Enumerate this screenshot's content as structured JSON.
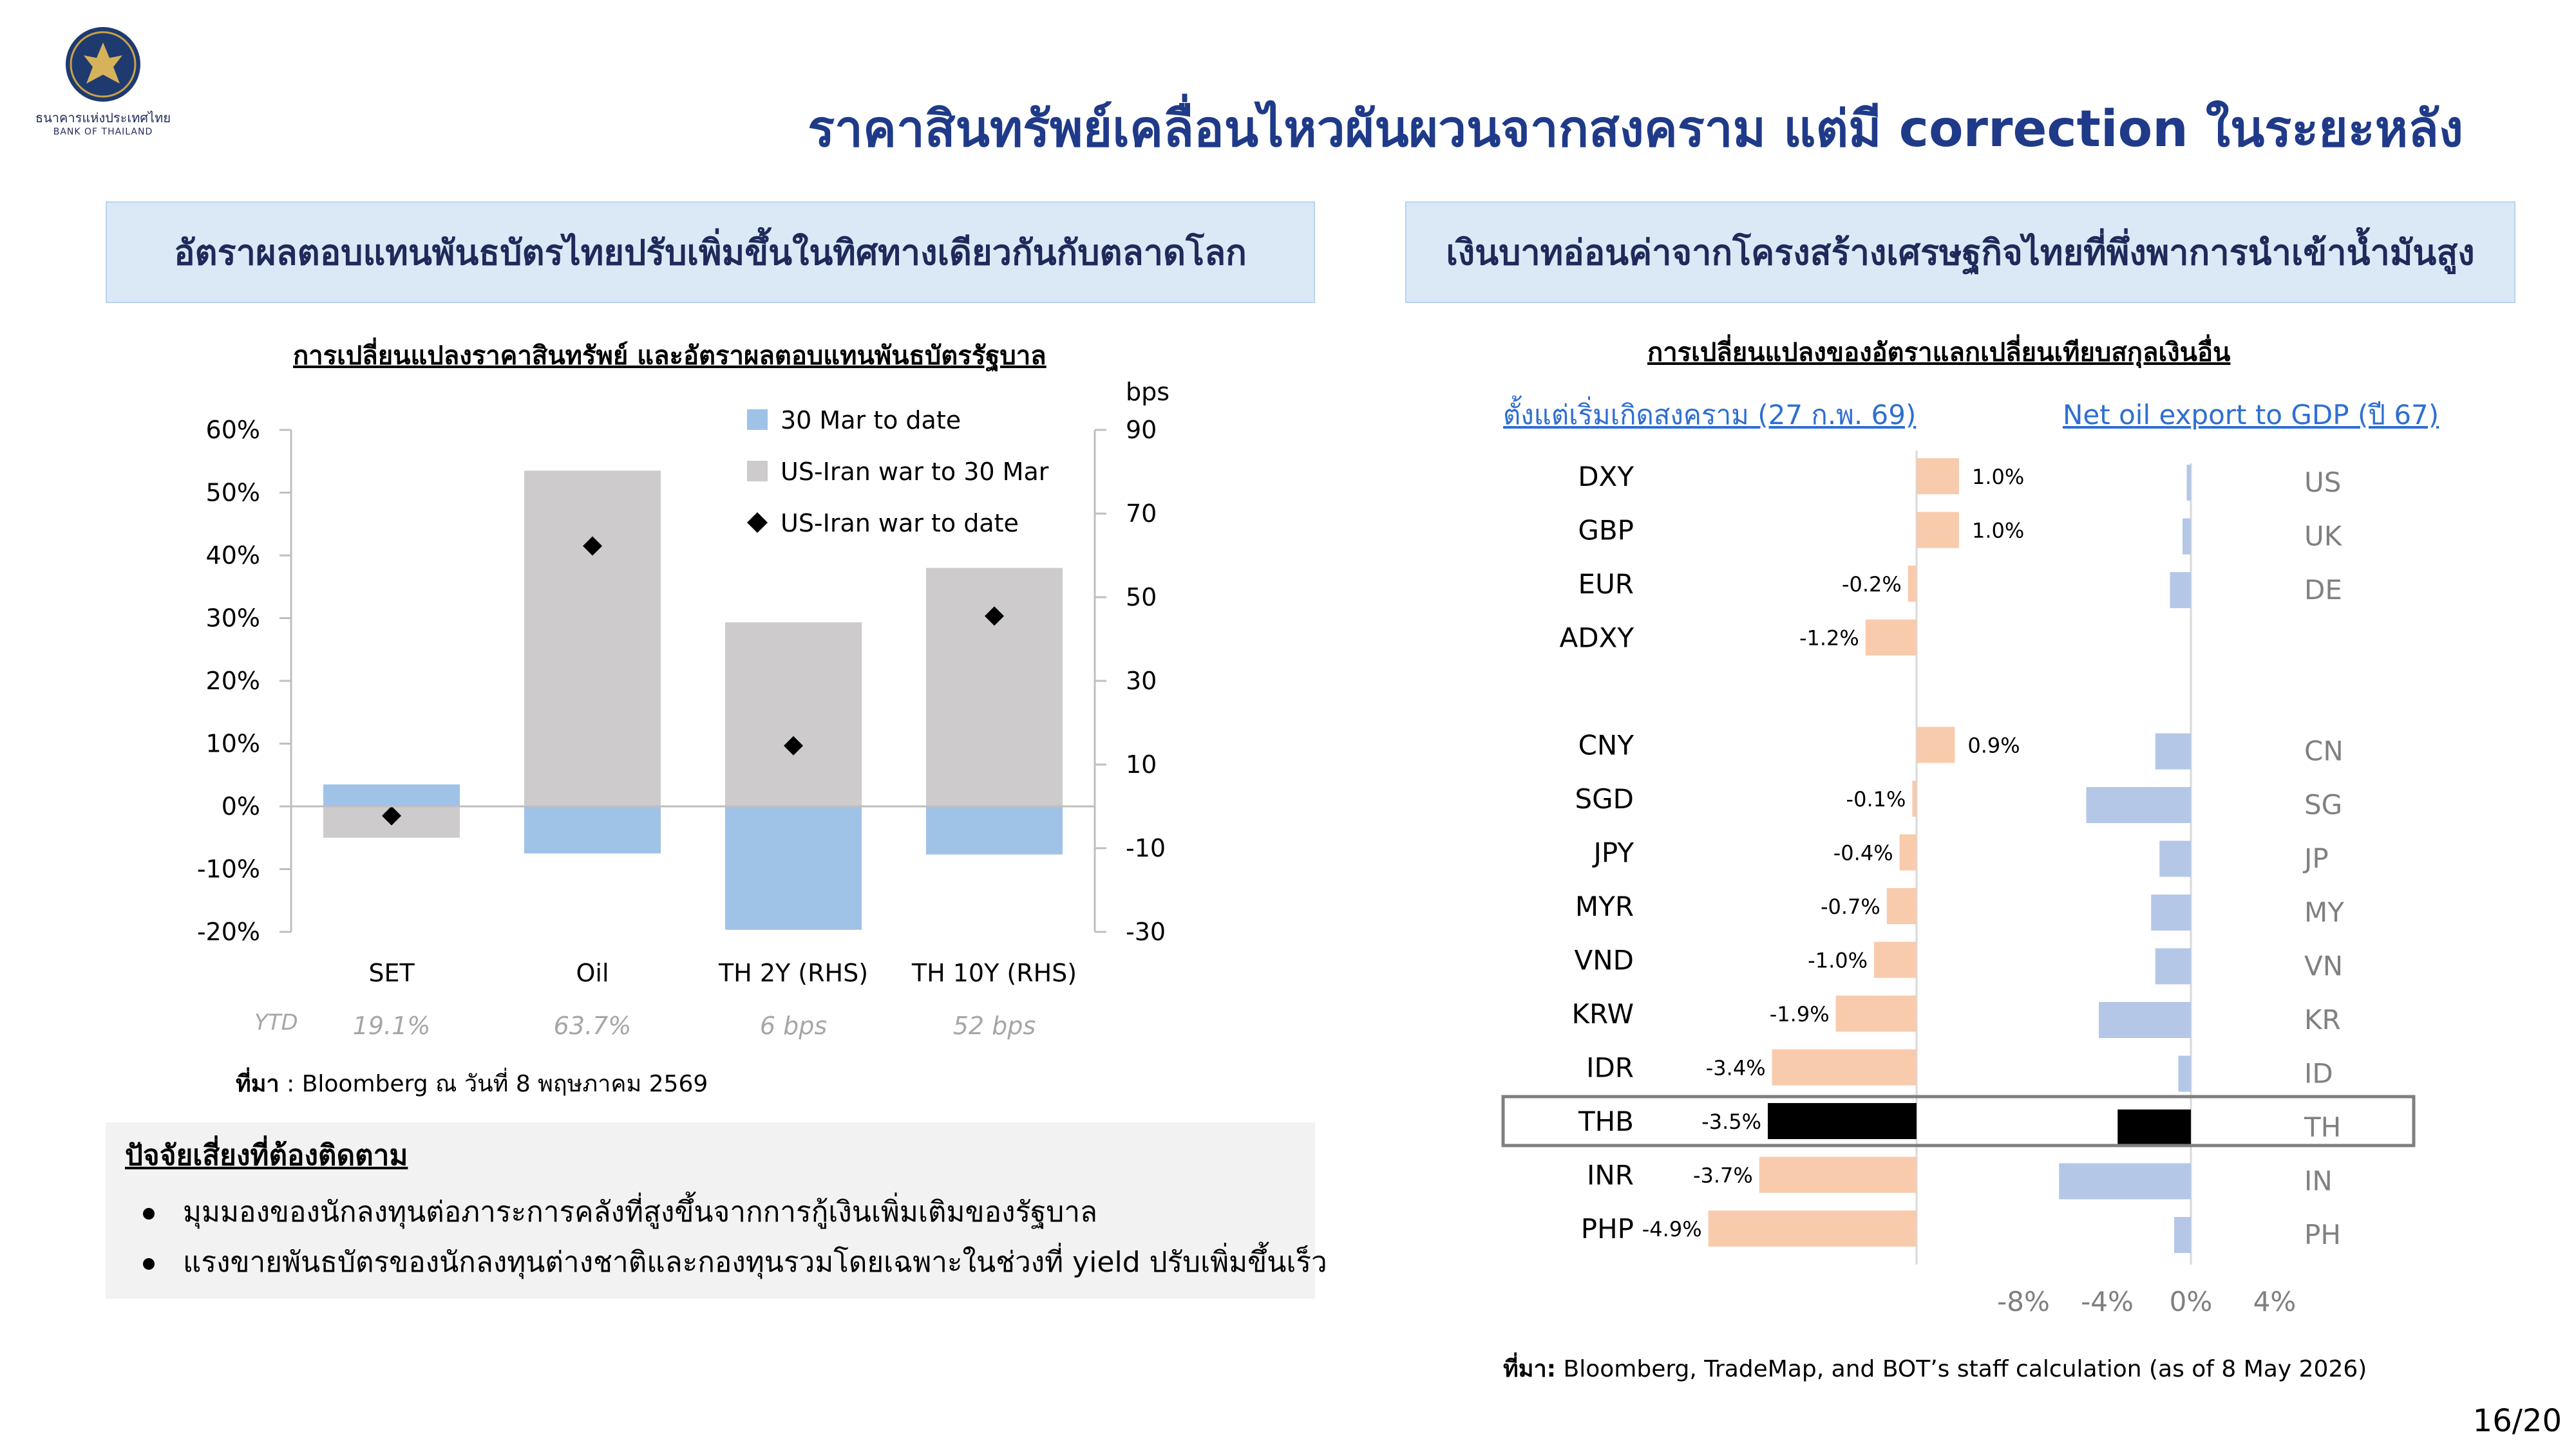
{
  "header": {
    "logo_caption_th": "ธนาคารแห่งประเทศไทย",
    "logo_caption_en": "BANK OF THAILAND",
    "title": "ราคาสินทรัพย์เคลื่อนไหวผันผวนจากสงคราม แต่มี correction ในระยะหลัง"
  },
  "left": {
    "heading": "อัตราผลตอบแทนพันธบัตรไทยปรับเพิ่มขึ้นในทิศทางเดียวกันกับตลาดโลก",
    "subtitle": "การเปลี่ยนแปลงราคาสินทรัพย์ และอัตราผลตอบแทนพันธบัตรรัฐบาล",
    "source_label": "ที่มา",
    "source_text": " : Bloomberg ณ วันที่ 8 พฤษภาคม 2569"
  },
  "right": {
    "heading": "เงินบาทอ่อนค่าจากโครงสร้างเศรษฐกิจไทยที่พึ่งพาการนำเข้าน้ำมันสูง",
    "subtitle": "การเปลี่ยนแปลงของอัตราแลกเปลี่ยนเทียบสกุลเงินอื่น",
    "left_header": "ตั้งแต่เริ่มเกิดสงคราม (27 ก.พ. 69)",
    "right_header": "Net oil export to GDP (ปี 67)",
    "source_label": "ที่มา:",
    "source_text": " Bloomberg, TradeMap, and BOT’s staff calculation (as of 8 May 2026)"
  },
  "risk": {
    "title": "ปัจจัยเสี่ยงที่ต้องติดตาม",
    "items": [
      "มุมมองของนักลงทุนต่อภาระการคลังที่สูงขึ้นจากการกู้เงินเพิ่มเติมของรัฐบาล",
      "แรงขายพันธบัตรของนักลงทุนต่างชาติและกองทุนรวมโดยเฉพาะในช่วงที่ yield ปรับเพิ่มขึ้นเร็ว"
    ]
  },
  "page_number": "16/20",
  "chart_data": [
    {
      "type": "bar",
      "categories": [
        "SET",
        "Oil",
        "TH 2Y (RHS)",
        "TH 10Y (RHS)"
      ],
      "ytd_label": "YTD",
      "ytd_values": [
        "19.1%",
        "63.7%",
        "6 bps",
        "52 bps"
      ],
      "y_left": {
        "min": -20,
        "max": 60,
        "step": 10,
        "unit": "%"
      },
      "y_right": {
        "min": -30,
        "max": 90,
        "step": 20,
        "label": "bps"
      },
      "series": [
        {
          "name": "30 Mar to date",
          "color": "#9fc2e7",
          "axis_by_category": [
            "left",
            "left",
            "right",
            "right"
          ],
          "values": [
            3.5,
            -7.5,
            -29.5,
            -11.5
          ]
        },
        {
          "name": "US-Iran war to 30 Mar",
          "color": "#cdcbcb",
          "axis_by_category": [
            "left",
            "left",
            "right",
            "right"
          ],
          "values": [
            -5,
            53.5,
            44,
            57
          ]
        },
        {
          "name": "US-Iran war to date",
          "marker": "diamond",
          "color": "#000000",
          "axis_by_category": [
            "left",
            "left",
            "right",
            "right"
          ],
          "values": [
            -1.5,
            41.5,
            14.5,
            45.5
          ]
        }
      ]
    },
    {
      "type": "bar",
      "orientation": "horizontal",
      "name": "fx_change",
      "categories": [
        "DXY",
        "GBP",
        "EUR",
        "ADXY",
        "CNY",
        "SGD",
        "JPY",
        "MYR",
        "VND",
        "KRW",
        "IDR",
        "THB",
        "INR",
        "PHP"
      ],
      "values": [
        1.0,
        1.0,
        -0.2,
        -1.2,
        0.9,
        -0.1,
        -0.4,
        -0.7,
        -1.0,
        -1.9,
        -3.4,
        -3.5,
        -3.7,
        -4.9
      ],
      "labels": [
        "1.0%",
        "1.0%",
        "-0.2%",
        "-1.2%",
        "0.9%",
        "-0.1%",
        "-0.4%",
        "-0.7%",
        "-1.0%",
        "-1.9%",
        "-3.4%",
        "-3.5%",
        "-3.7%",
        "-4.9%"
      ],
      "color": "#f8cbad",
      "highlight": {
        "category": "THB",
        "color": "#000000"
      }
    },
    {
      "type": "bar",
      "orientation": "horizontal",
      "name": "net_oil_export_to_gdp",
      "categories": [
        "US",
        "UK",
        "DE",
        "CN",
        "SG",
        "JP",
        "MY",
        "VN",
        "KR",
        "ID",
        "TH",
        "IN",
        "PH"
      ],
      "values": [
        -0.2,
        -0.4,
        -1.0,
        -1.7,
        -5.0,
        -1.5,
        -1.9,
        -1.7,
        -4.4,
        -0.6,
        -3.5,
        -6.3,
        -0.8
      ],
      "x_ticks": [
        "-8%",
        "-4%",
        "0%",
        "4%"
      ],
      "xlim": [
        -8,
        4
      ],
      "color": "#b4c7e7",
      "highlight": {
        "category": "TH",
        "color": "#000000"
      }
    }
  ]
}
